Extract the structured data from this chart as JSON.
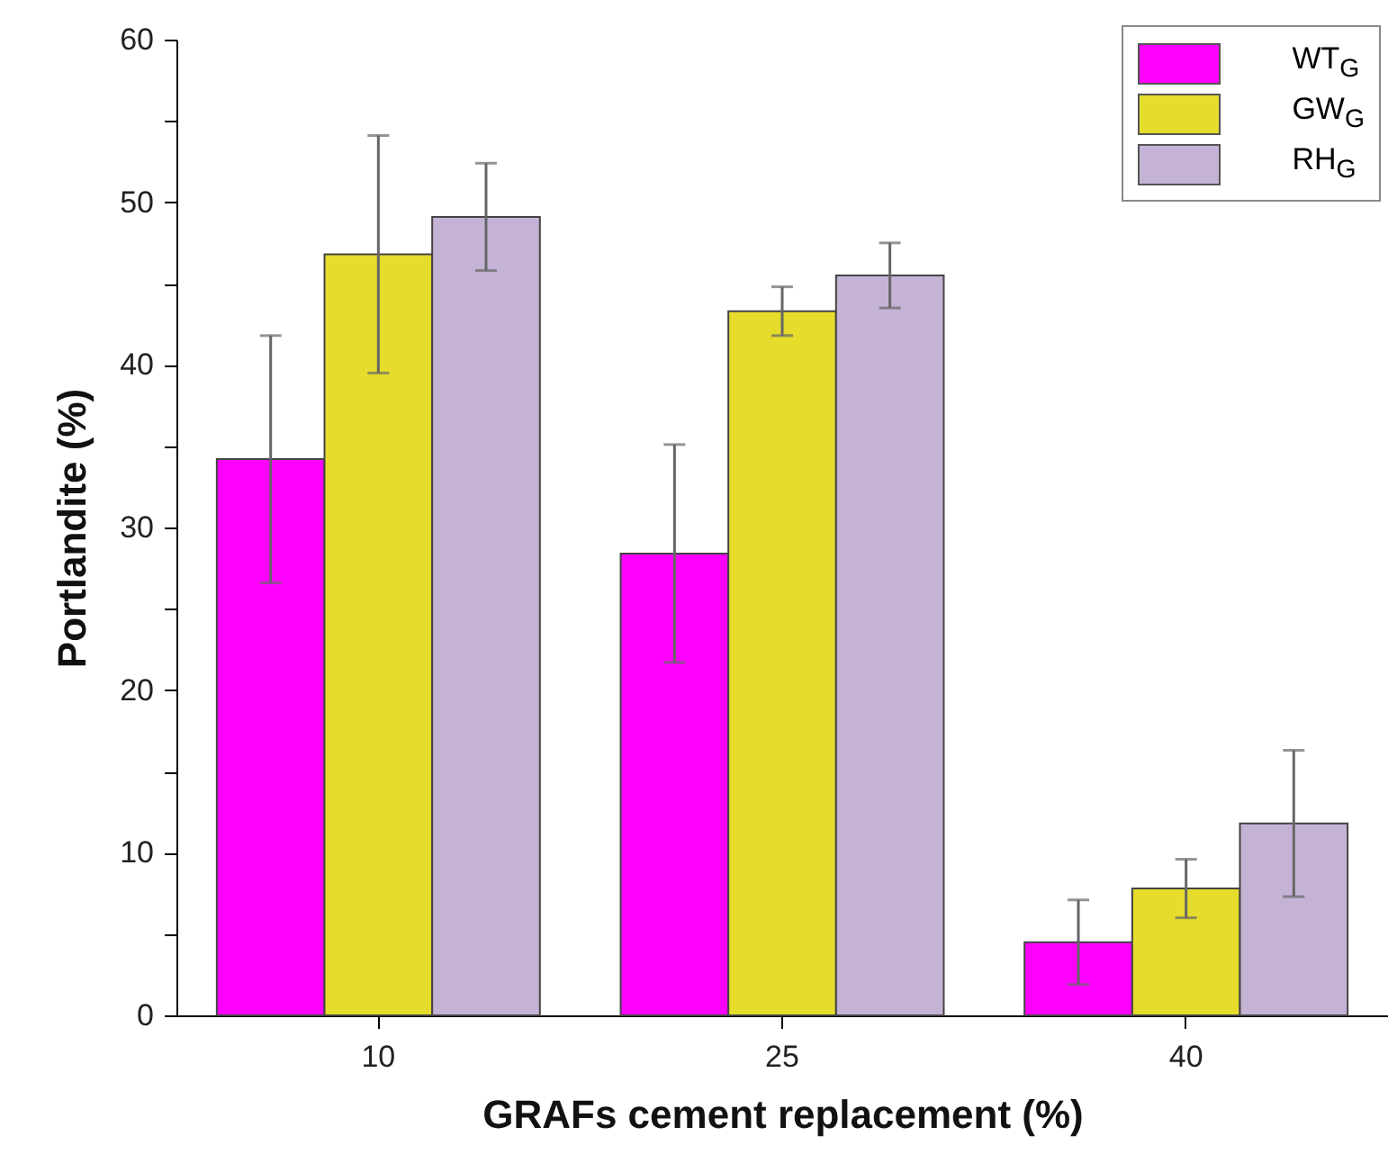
{
  "chart_data": {
    "type": "bar",
    "xlabel": "GRAFs cement replacement (%)",
    "ylabel": "Portlandite (%)",
    "categories": [
      "10",
      "25",
      "40"
    ],
    "series": [
      {
        "name": "WT$_{G}$",
        "color": "#ff00ff",
        "values": [
          34.2,
          28.4,
          4.5
        ],
        "errors": [
          7.6,
          6.7,
          2.6
        ]
      },
      {
        "name": "GW$_{G}$",
        "color": "#e6dc2c",
        "values": [
          46.8,
          43.3,
          7.8
        ],
        "errors": [
          7.3,
          1.5,
          1.8
        ]
      },
      {
        "name": "RH$_{G}$",
        "color": "#c5b3d6",
        "values": [
          49.1,
          45.5,
          11.8
        ],
        "errors": [
          3.3,
          2.0,
          4.5
        ]
      }
    ],
    "ylim": [
      0,
      60
    ],
    "yticks": [
      0,
      {
        "value": 5,
        "label": null
      },
      10,
      {
        "value": 15,
        "label": null
      },
      20,
      {
        "value": 25,
        "label": null
      },
      30,
      {
        "value": 35,
        "label": null
      },
      40,
      {
        "value": 45,
        "label": null
      },
      50,
      {
        "value": 55,
        "label": null
      },
      60
    ],
    "grid": false,
    "legend": "top right"
  }
}
